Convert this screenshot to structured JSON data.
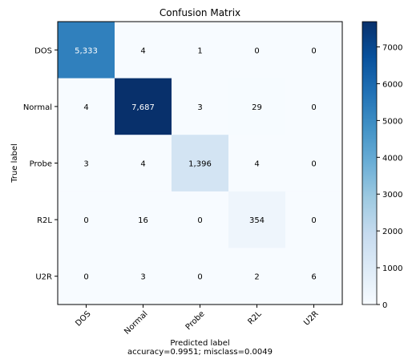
{
  "chart_data": {
    "type": "heatmap",
    "title": "Confusion Matrix",
    "xlabel": "Predicted label",
    "xlabel_note": "accuracy=0.9951; misclass=0.0049",
    "ylabel": "True label",
    "x_categories": [
      "DOS",
      "Normal",
      "Probe",
      "R2L",
      "U2R"
    ],
    "y_categories": [
      "DOS",
      "Normal",
      "Probe",
      "R2L",
      "U2R"
    ],
    "values": [
      [
        5333,
        4,
        1,
        0,
        0
      ],
      [
        4,
        7687,
        3,
        29,
        0
      ],
      [
        3,
        4,
        1396,
        4,
        0
      ],
      [
        0,
        16,
        0,
        354,
        0
      ],
      [
        0,
        3,
        0,
        2,
        6
      ]
    ],
    "cell_labels": [
      [
        "5,333",
        "4",
        "1",
        "0",
        "0"
      ],
      [
        "4",
        "7,687",
        "3",
        "29",
        "0"
      ],
      [
        "3",
        "4",
        "1,396",
        "4",
        "0"
      ],
      [
        "0",
        "16",
        "0",
        "354",
        "0"
      ],
      [
        "0",
        "3",
        "0",
        "2",
        "6"
      ]
    ],
    "colorscale": "Blues",
    "color_min": "#f7fbff",
    "color_max": "#08306b",
    "colorbar_range": [
      0,
      7687
    ],
    "colorbar_ticks": [
      0,
      1000,
      2000,
      3000,
      4000,
      5000,
      6000,
      7000
    ],
    "grid": false
  }
}
